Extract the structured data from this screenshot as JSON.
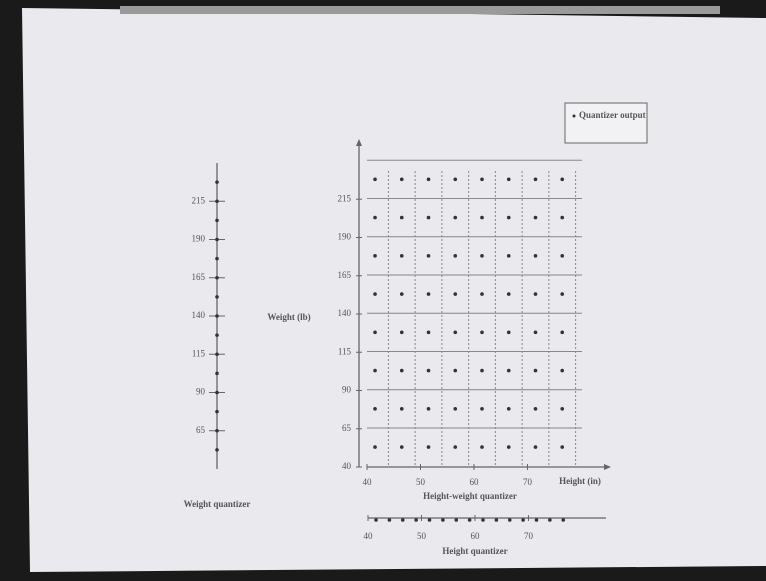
{
  "chart_data": [
    {
      "type": "scatter",
      "title": "Height-weight quantizer",
      "x_label": "Height (in)",
      "y_label": "Weight (lb)",
      "xlim": [
        40,
        83
      ],
      "ylim": [
        40,
        240
      ],
      "xticks": [
        40,
        50,
        60,
        70
      ],
      "yticks": [
        40,
        65,
        90,
        115,
        140,
        165,
        190,
        215
      ],
      "series": [
        {
          "name": "Quantizer output",
          "color": "#333",
          "x": [
            41.5,
            46.5,
            51.5,
            56.5,
            61.5,
            66.5,
            71.5,
            76.5,
            41.5,
            46.5,
            51.5,
            56.5,
            61.5,
            66.5,
            71.5,
            76.5,
            41.5,
            46.5,
            51.5,
            56.5,
            61.5,
            66.5,
            71.5,
            76.5,
            41.5,
            46.5,
            51.5,
            56.5,
            61.5,
            66.5,
            71.5,
            76.5,
            41.5,
            46.5,
            51.5,
            56.5,
            61.5,
            66.5,
            71.5,
            76.5,
            41.5,
            46.5,
            51.5,
            56.5,
            61.5,
            66.5,
            71.5,
            76.5,
            41.5,
            46.5,
            51.5,
            56.5,
            61.5,
            66.5,
            71.5,
            76.5,
            41.5,
            46.5,
            51.5,
            56.5,
            61.5,
            66.5,
            71.5,
            76.5
          ],
          "y": [
            53,
            53,
            53,
            53,
            53,
            53,
            53,
            53,
            78,
            78,
            78,
            78,
            78,
            78,
            78,
            78,
            103,
            103,
            103,
            103,
            103,
            103,
            103,
            103,
            128,
            128,
            128,
            128,
            128,
            128,
            128,
            128,
            153,
            153,
            153,
            153,
            153,
            153,
            153,
            153,
            178,
            178,
            178,
            178,
            178,
            178,
            178,
            178,
            203,
            203,
            203,
            203,
            203,
            203,
            203,
            203,
            228,
            228,
            228,
            228,
            228,
            228,
            228,
            228
          ]
        }
      ]
    },
    {
      "type": "strip",
      "orientation": "vertical",
      "title": "Weight quantizer",
      "ylim": [
        40,
        240
      ],
      "yticks": [
        65,
        90,
        115,
        140,
        165,
        190,
        215
      ],
      "color": "#333",
      "values": [
        52.5,
        65,
        77.5,
        90,
        102.5,
        115,
        127.5,
        140,
        152.5,
        165,
        177.5,
        190,
        202.5,
        215,
        227.5
      ]
    },
    {
      "type": "strip",
      "orientation": "horizontal",
      "title": "Height quantizer",
      "xlim": [
        40,
        83
      ],
      "xticks": [
        40,
        50,
        60,
        70
      ],
      "color": "#333",
      "values": [
        41.5,
        44,
        46.5,
        49,
        51.5,
        54,
        56.5,
        59,
        61.5,
        64,
        66.5,
        69,
        71.5,
        74,
        76.5
      ]
    }
  ]
}
